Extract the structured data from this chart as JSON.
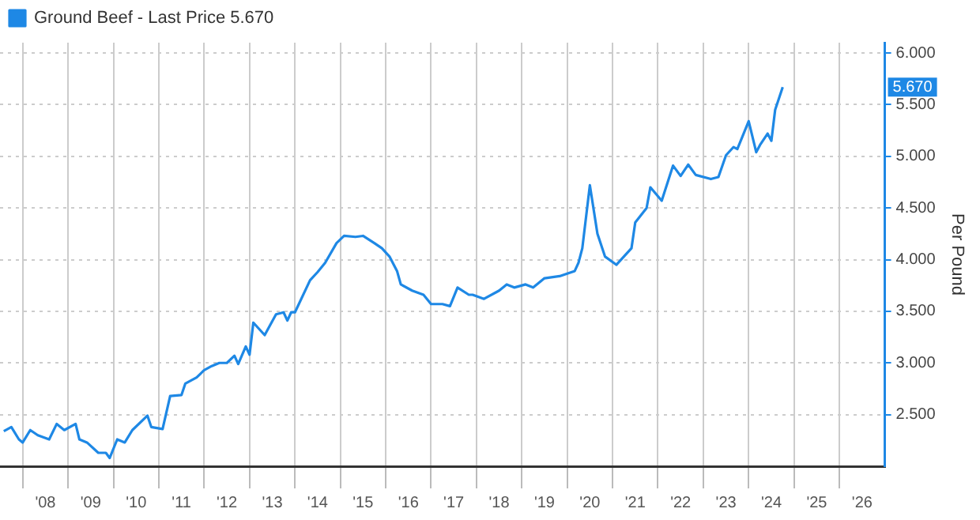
{
  "chart_data": {
    "type": "line",
    "ylabel": "Per Pound",
    "legend": "top left",
    "grid": true,
    "marker": "none",
    "line_style": "solid",
    "xlim": [
      "2007-07",
      "2027-01"
    ],
    "xticks": [
      {
        "value": "2008-01",
        "label": null
      },
      {
        "value": "2008-07",
        "label": "'08"
      },
      {
        "value": "2009-01",
        "label": null
      },
      {
        "value": "2009-07",
        "label": "'09"
      },
      {
        "value": "2010-01",
        "label": null
      },
      {
        "value": "2010-07",
        "label": "'10"
      },
      {
        "value": "2011-01",
        "label": null
      },
      {
        "value": "2011-07",
        "label": "'11"
      },
      {
        "value": "2012-01",
        "label": null
      },
      {
        "value": "2012-07",
        "label": "'12"
      },
      {
        "value": "2013-01",
        "label": null
      },
      {
        "value": "2013-07",
        "label": "'13"
      },
      {
        "value": "2014-01",
        "label": null
      },
      {
        "value": "2014-07",
        "label": "'14"
      },
      {
        "value": "2015-01",
        "label": null
      },
      {
        "value": "2015-07",
        "label": "'15"
      },
      {
        "value": "2016-01",
        "label": null
      },
      {
        "value": "2016-07",
        "label": "'16"
      },
      {
        "value": "2017-01",
        "label": null
      },
      {
        "value": "2017-07",
        "label": "'17"
      },
      {
        "value": "2018-01",
        "label": null
      },
      {
        "value": "2018-07",
        "label": "'18"
      },
      {
        "value": "2019-01",
        "label": null
      },
      {
        "value": "2019-07",
        "label": "'19"
      },
      {
        "value": "2020-01",
        "label": null
      },
      {
        "value": "2020-07",
        "label": "'20"
      },
      {
        "value": "2021-01",
        "label": null
      },
      {
        "value": "2021-07",
        "label": "'21"
      },
      {
        "value": "2022-01",
        "label": null
      },
      {
        "value": "2022-07",
        "label": "'22"
      },
      {
        "value": "2023-01",
        "label": null
      },
      {
        "value": "2023-07",
        "label": "'23"
      },
      {
        "value": "2024-01",
        "label": null
      },
      {
        "value": "2024-07",
        "label": "'24"
      },
      {
        "value": "2025-01",
        "label": null
      },
      {
        "value": "2025-07",
        "label": "'25"
      },
      {
        "value": "2026-01",
        "label": null
      },
      {
        "value": "2026-07",
        "label": "'26"
      }
    ],
    "ylim": [
      2.0,
      6.1
    ],
    "yticks": [
      {
        "value": 2.5,
        "label": "2.500"
      },
      {
        "value": 3,
        "label": "3.000"
      },
      {
        "value": 3.5,
        "label": "3.500"
      },
      {
        "value": 4,
        "label": "4.000"
      },
      {
        "value": 4.5,
        "label": "4.500"
      },
      {
        "value": 5,
        "label": "5.000"
      },
      {
        "value": 5.5,
        "label": "5.500"
      },
      {
        "value": 6,
        "label": "6.000"
      }
    ],
    "annotations": [
      "5.670"
    ],
    "series": [
      {
        "name": "Ground Beef - Last Price 5.670",
        "color": "#1e88e5",
        "x": [
          "2007-08",
          "2007-10",
          "2007-12",
          "2008-01",
          "2008-03",
          "2008-05",
          "2008-08",
          "2008-10",
          "2008-12",
          "2009-03",
          "2009-04",
          "2009-06",
          "2009-09",
          "2009-11",
          "2009-12",
          "2010-02",
          "2010-04",
          "2010-06",
          "2010-10",
          "2010-11",
          "2011-02",
          "2011-04",
          "2011-07",
          "2011-08",
          "2011-11",
          "2012-01",
          "2012-03",
          "2012-05",
          "2012-07",
          "2012-09",
          "2012-10",
          "2012-12",
          "2013-01",
          "2013-02",
          "2013-05",
          "2013-08",
          "2013-10",
          "2013-11",
          "2013-12",
          "2014-01",
          "2014-05",
          "2014-07",
          "2014-09",
          "2014-12",
          "2015-02",
          "2015-05",
          "2015-07",
          "2015-10",
          "2015-12",
          "2016-02",
          "2016-04",
          "2016-05",
          "2016-08",
          "2016-11",
          "2017-01",
          "2017-04",
          "2017-06",
          "2017-08",
          "2017-11",
          "2017-12",
          "2018-03",
          "2018-07",
          "2018-09",
          "2018-11",
          "2019-02",
          "2019-04",
          "2019-07",
          "2019-11",
          "2020-03",
          "2020-04",
          "2020-05",
          "2020-07",
          "2020-09",
          "2020-11",
          "2021-02",
          "2021-05",
          "2021-06",
          "2021-07",
          "2021-10",
          "2021-11",
          "2022-02",
          "2022-05",
          "2022-07",
          "2022-09",
          "2022-11",
          "2023-03",
          "2023-05",
          "2023-07",
          "2023-09",
          "2023-10",
          "2024-01",
          "2024-03",
          "2024-04",
          "2024-06",
          "2024-07",
          "2024-08",
          "2024-10"
        ],
        "values": [
          2.34,
          2.38,
          2.26,
          2.23,
          2.35,
          2.3,
          2.26,
          2.41,
          2.35,
          2.41,
          2.26,
          2.23,
          2.13,
          2.13,
          2.08,
          2.26,
          2.23,
          2.35,
          2.49,
          2.38,
          2.36,
          2.68,
          2.69,
          2.8,
          2.86,
          2.93,
          2.97,
          3.0,
          3.0,
          3.07,
          2.99,
          3.16,
          3.08,
          3.39,
          3.27,
          3.47,
          3.49,
          3.41,
          3.49,
          3.49,
          3.8,
          3.88,
          3.97,
          4.16,
          4.23,
          4.22,
          4.23,
          4.16,
          4.11,
          4.03,
          3.89,
          3.76,
          3.7,
          3.66,
          3.57,
          3.57,
          3.55,
          3.73,
          3.66,
          3.66,
          3.62,
          3.7,
          3.76,
          3.73,
          3.76,
          3.73,
          3.82,
          3.84,
          3.89,
          3.97,
          4.11,
          4.72,
          4.25,
          4.03,
          3.95,
          4.07,
          4.11,
          4.36,
          4.5,
          4.7,
          4.57,
          4.91,
          4.81,
          4.92,
          4.82,
          4.78,
          4.8,
          5.01,
          5.09,
          5.07,
          5.34,
          5.04,
          5.11,
          5.22,
          5.15,
          5.45,
          5.67
        ]
      }
    ]
  }
}
